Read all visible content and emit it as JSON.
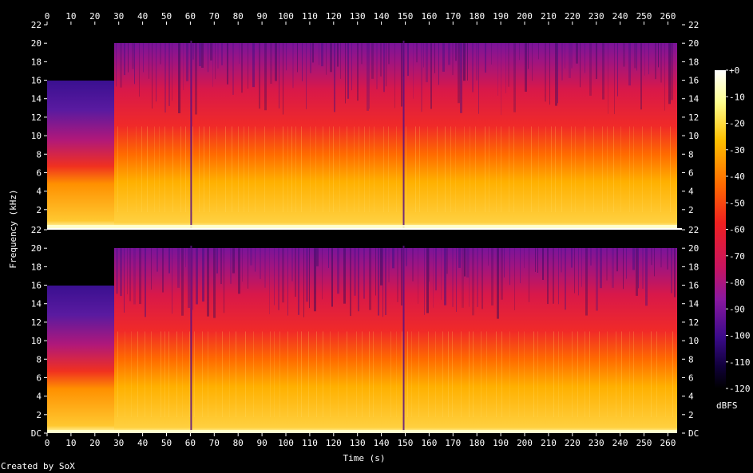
{
  "chart_data": {
    "type": "heatmap",
    "xlabel": "Time (s)",
    "ylabel": "Frequency (kHz)",
    "colorbar_label": "dBFS",
    "xlim": [
      0,
      264
    ],
    "ylim": [
      0,
      22
    ],
    "x_ticks": [
      "0",
      "10",
      "20",
      "30",
      "40",
      "50",
      "60",
      "70",
      "80",
      "90",
      "100",
      "110",
      "120",
      "130",
      "140",
      "150",
      "160",
      "170",
      "180",
      "190",
      "200",
      "210",
      "220",
      "230",
      "240",
      "250",
      "260"
    ],
    "y_ticks_top": [
      "2",
      "4",
      "6",
      "8",
      "10",
      "12",
      "14",
      "16",
      "18",
      "20",
      "22"
    ],
    "y_ticks_bottom": [
      "DC",
      "2",
      "4",
      "6",
      "8",
      "10",
      "12",
      "14",
      "16",
      "18",
      "20",
      "22"
    ],
    "colorbar_ticks": [
      "+0",
      "-10",
      "-20",
      "-30",
      "-40",
      "-50",
      "-60",
      "-70",
      "-80",
      "-90",
      "-100",
      "-110",
      "-120"
    ],
    "colorbar_range": [
      -120,
      0
    ],
    "channels": 2,
    "segments": [
      {
        "start": 0,
        "end": 28,
        "cutoff_khz": 16
      },
      {
        "start": 28,
        "end": 262,
        "cutoff_khz": 20
      }
    ],
    "dropouts_s": [
      60,
      149
    ],
    "palette": [
      "#000000",
      "#1a0040",
      "#3a0a8a",
      "#8a1a9a",
      "#d01850",
      "#f03020",
      "#ff7000",
      "#ffc000",
      "#ffff80",
      "#ffffff"
    ]
  },
  "footer": "Created by SoX"
}
